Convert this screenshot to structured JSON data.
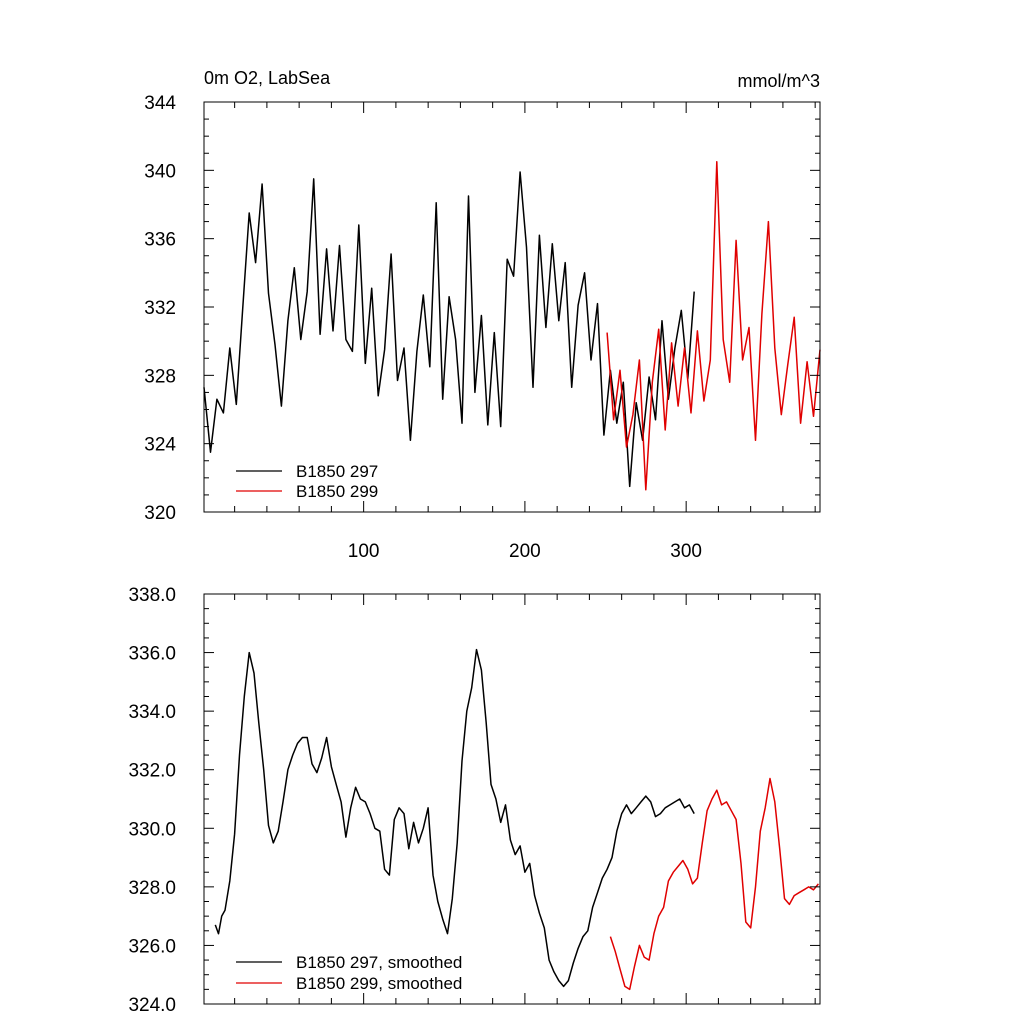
{
  "chart_data": [
    {
      "type": "line",
      "title": "0m O2, LabSea",
      "units": "mmol/m^3",
      "xlabel": "",
      "ylabel": "",
      "xlim": [
        1,
        383
      ],
      "ylim": [
        320,
        344
      ],
      "x_tick_values": [
        100,
        200,
        300
      ],
      "x_tick_labels": [
        "100",
        "200",
        "300"
      ],
      "y_tick_values": [
        320,
        324,
        328,
        332,
        336,
        340,
        344
      ],
      "y_tick_labels": [
        "320",
        "324",
        "328",
        "332",
        "336",
        "340",
        "344"
      ],
      "legend_position": "bottom-left",
      "series": [
        {
          "name": "B1850 297",
          "color": "#000000",
          "x": [
            1,
            5,
            9,
            13,
            17,
            21,
            25,
            29,
            33,
            37,
            41,
            45,
            49,
            53,
            57,
            61,
            65,
            69,
            73,
            77,
            81,
            85,
            89,
            93,
            97,
            101,
            105,
            109,
            113,
            117,
            121,
            125,
            129,
            133,
            137,
            141,
            145,
            149,
            153,
            157,
            161,
            165,
            169,
            173,
            177,
            181,
            185,
            189,
            193,
            197,
            201,
            205,
            209,
            213,
            217,
            221,
            225,
            229,
            233,
            237,
            241,
            245,
            249,
            253,
            257,
            261,
            265,
            269,
            273,
            277,
            281,
            285,
            289,
            293,
            297,
            301,
            305
          ],
          "values": [
            327.3,
            323.5,
            326.6,
            325.8,
            329.6,
            326.3,
            331.9,
            337.5,
            334.6,
            339.2,
            332.8,
            329.8,
            326.2,
            331.2,
            334.3,
            330.1,
            332.9,
            339.5,
            330.4,
            335.4,
            330.6,
            335.6,
            330.1,
            329.4,
            336.8,
            328.7,
            333.1,
            326.8,
            329.5,
            335.1,
            327.7,
            329.6,
            324.2,
            329.4,
            332.7,
            328.5,
            338.1,
            326.6,
            332.6,
            330.1,
            325.2,
            338.5,
            327.0,
            331.5,
            325.1,
            330.5,
            325.0,
            334.8,
            333.8,
            339.9,
            335.5,
            327.3,
            336.2,
            330.8,
            335.7,
            331.2,
            334.6,
            327.3,
            332.1,
            334.0,
            328.9,
            332.2,
            324.5,
            328.3,
            325.2,
            327.6,
            321.5,
            326.4,
            324.2,
            327.9,
            325.4,
            331.2,
            326.6,
            329.6,
            331.8,
            327.8,
            332.9
          ]
        },
        {
          "name": "B1850 299",
          "color": "#e00000",
          "x": [
            251,
            255,
            259,
            263,
            267,
            271,
            275,
            279,
            283,
            287,
            291,
            295,
            299,
            303,
            307,
            311,
            315,
            319,
            323,
            327,
            331,
            335,
            339,
            343,
            347,
            351,
            355,
            359,
            363,
            367,
            371,
            375,
            379,
            383
          ],
          "values": [
            330.5,
            325.4,
            328.3,
            323.8,
            325.7,
            328.9,
            321.3,
            327.6,
            330.7,
            324.8,
            329.9,
            326.2,
            329.6,
            325.8,
            330.6,
            326.5,
            328.9,
            340.5,
            330.1,
            327.6,
            335.9,
            328.9,
            330.8,
            324.2,
            331.6,
            337.0,
            329.6,
            325.7,
            328.6,
            331.4,
            325.2,
            328.8,
            325.6,
            329.5
          ]
        }
      ]
    },
    {
      "type": "line",
      "title": "",
      "xlabel": "",
      "ylabel": "",
      "xlim": [
        1,
        383
      ],
      "ylim": [
        324,
        338
      ],
      "y_tick_values": [
        324,
        326,
        328,
        330,
        332,
        334,
        336,
        338
      ],
      "y_tick_labels": [
        "324.0",
        "326.0",
        "328.0",
        "330.0",
        "332.0",
        "334.0",
        "336.0",
        "338.0"
      ],
      "legend_position": "bottom-left",
      "series": [
        {
          "name": "B1850 297, smoothed",
          "color": "#000000",
          "x": [
            8,
            10,
            12,
            14,
            17,
            20,
            23,
            26,
            29,
            32,
            35,
            38,
            41,
            44,
            47,
            50,
            53,
            56,
            59,
            62,
            65,
            68,
            71,
            74,
            77,
            80,
            83,
            86,
            89,
            92,
            95,
            98,
            101,
            104,
            107,
            110,
            113,
            116,
            119,
            122,
            125,
            128,
            131,
            134,
            137,
            140,
            143,
            146,
            149,
            152,
            155,
            158,
            161,
            164,
            167,
            170,
            173,
            176,
            179,
            182,
            185,
            188,
            191,
            194,
            197,
            200,
            203,
            206,
            209,
            212,
            215,
            218,
            221,
            224,
            227,
            230,
            233,
            236,
            239,
            242,
            245,
            248,
            251,
            254,
            257,
            260,
            263,
            266,
            269,
            272,
            275,
            278,
            281,
            284,
            287,
            290,
            293,
            296,
            299,
            302,
            305
          ],
          "values": [
            326.7,
            326.4,
            327.0,
            327.2,
            328.2,
            329.8,
            332.5,
            334.5,
            336.0,
            335.3,
            333.6,
            332.0,
            330.1,
            329.5,
            329.9,
            330.9,
            332.0,
            332.5,
            332.9,
            333.1,
            333.1,
            332.2,
            331.9,
            332.4,
            333.1,
            332.1,
            331.5,
            330.9,
            329.7,
            330.7,
            331.4,
            331.0,
            330.9,
            330.5,
            330.0,
            329.9,
            328.6,
            328.4,
            330.3,
            330.7,
            330.5,
            329.3,
            330.2,
            329.5,
            330.0,
            330.7,
            328.4,
            327.5,
            326.9,
            326.4,
            327.6,
            329.5,
            332.3,
            334.0,
            334.8,
            336.1,
            335.4,
            333.6,
            331.5,
            331.0,
            330.2,
            330.8,
            329.6,
            329.1,
            329.4,
            328.5,
            328.8,
            327.7,
            327.1,
            326.6,
            325.5,
            325.1,
            324.8,
            324.6,
            324.8,
            325.4,
            325.9,
            326.3,
            326.5,
            327.3,
            327.8,
            328.3,
            328.6,
            329.0,
            329.9,
            330.5,
            330.8,
            330.5,
            330.7,
            330.9,
            331.1,
            330.9,
            330.4,
            330.5,
            330.7,
            330.8,
            330.9,
            331.0,
            330.7,
            330.8,
            330.5
          ]
        },
        {
          "name": "B1850 299, smoothed",
          "color": "#e00000",
          "x": [
            253,
            256,
            259,
            262,
            265,
            268,
            271,
            274,
            277,
            280,
            283,
            286,
            289,
            292,
            295,
            298,
            301,
            304,
            307,
            310,
            313,
            316,
            319,
            322,
            325,
            328,
            331,
            334,
            337,
            340,
            343,
            346,
            349,
            352,
            355,
            358,
            361,
            364,
            367,
            370,
            373,
            376,
            379,
            382
          ],
          "values": [
            326.3,
            325.8,
            325.2,
            324.6,
            324.5,
            325.3,
            326.0,
            325.6,
            325.5,
            326.4,
            327.0,
            327.3,
            328.2,
            328.5,
            328.7,
            328.9,
            328.6,
            328.1,
            328.3,
            329.5,
            330.6,
            331.0,
            331.3,
            330.8,
            330.9,
            330.6,
            330.3,
            328.8,
            326.8,
            326.6,
            328.0,
            329.9,
            330.7,
            331.7,
            330.9,
            329.3,
            327.6,
            327.4,
            327.7,
            327.8,
            327.9,
            328.0,
            327.9,
            328.1
          ]
        }
      ]
    }
  ]
}
